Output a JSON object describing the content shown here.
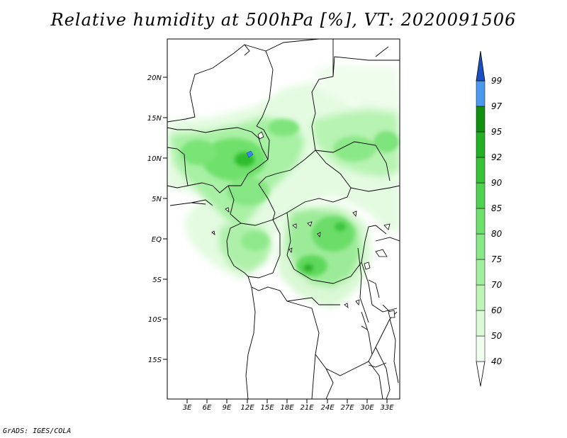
{
  "title": "Relative humidity at 500hPa [%], VT: 2020091506",
  "credit": "GrADS: IGES/COLA",
  "map": {
    "lat_ticks": [
      "20N",
      "15N",
      "10N",
      "5N",
      "EQ",
      "5S",
      "10S",
      "15S"
    ],
    "lon_ticks": [
      "3E",
      "6E",
      "9E",
      "12E",
      "15E",
      "18E",
      "21E",
      "24E",
      "27E",
      "30E",
      "33E"
    ]
  },
  "colorbar": {
    "labels": [
      "40",
      "50",
      "60",
      "70",
      "75",
      "80",
      "85",
      "90",
      "92",
      "95",
      "97",
      "99"
    ],
    "colors": [
      "#f0fff0",
      "#d9fbd6",
      "#bdf5b8",
      "#a2efa0",
      "#86e886",
      "#6be06b",
      "#4fd24f",
      "#37c237",
      "#24b024",
      "#118f11",
      "#4a99ee",
      "#2a72e0",
      "#1a4fc4"
    ]
  }
}
